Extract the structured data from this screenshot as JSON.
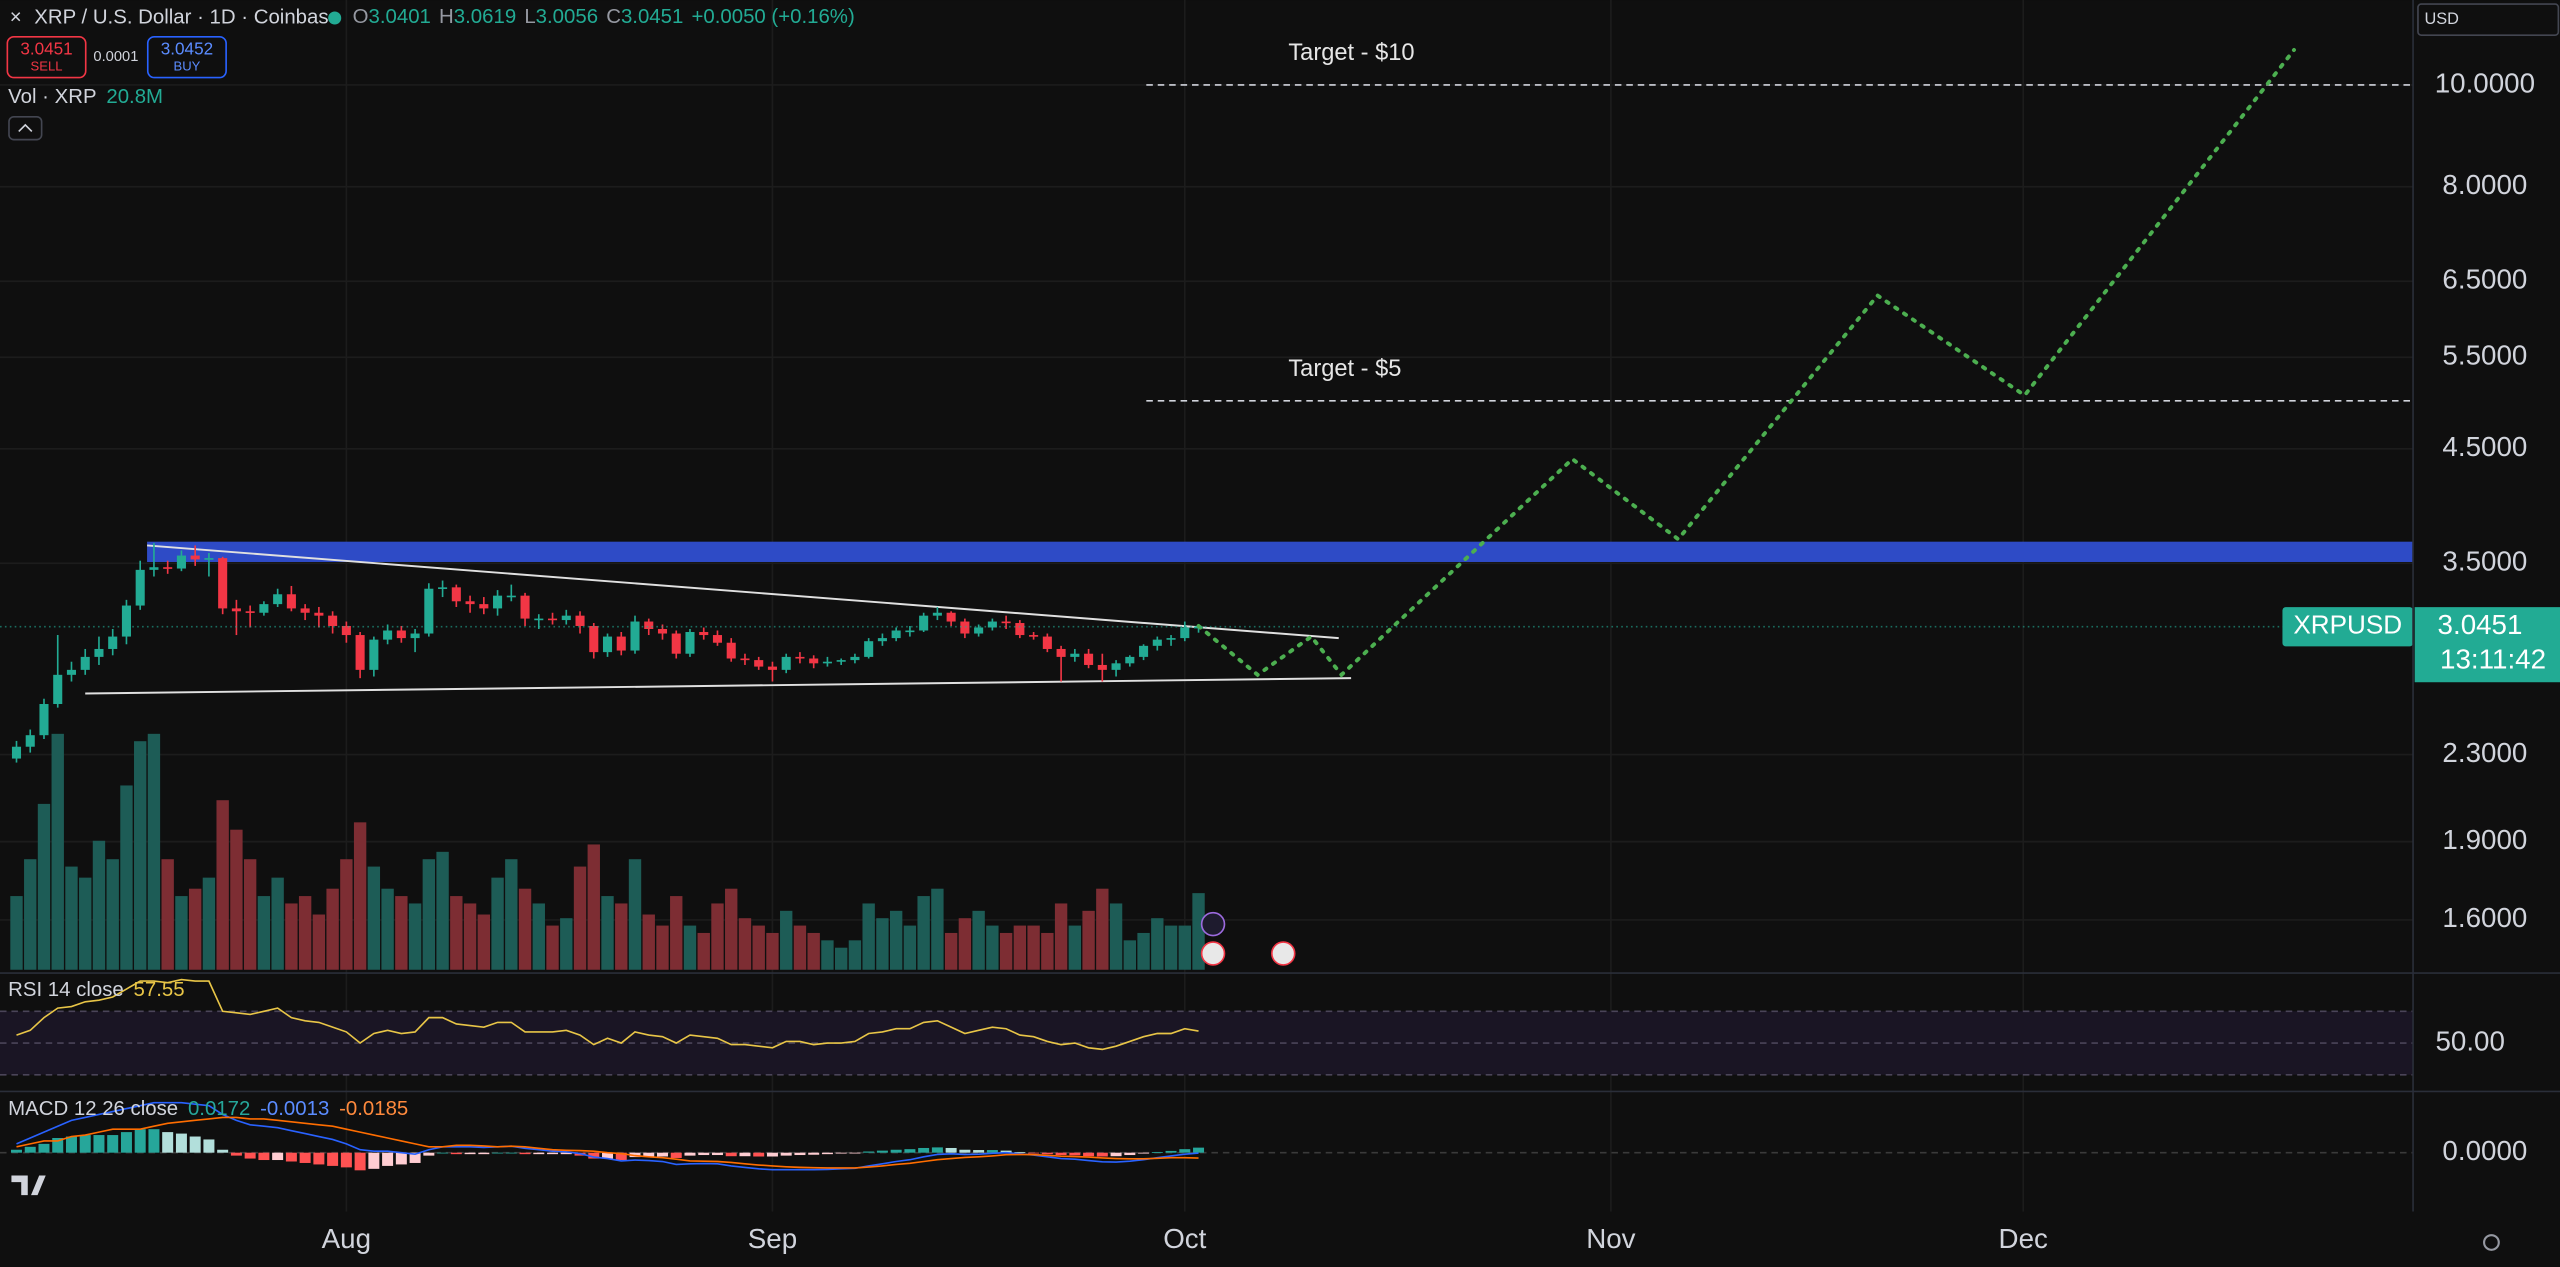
{
  "ui": {
    "sell": {
      "price": "3.0451",
      "label": "SELL"
    },
    "spread": "0.0001",
    "buy": {
      "price": "3.0452",
      "label": "BUY"
    },
    "currency": "USD"
  },
  "chart_data": {
    "type": "candlestick",
    "title": "XRP / U.S. Dollar · 1D · Coinbase",
    "ohlc": [
      {
        "label": "O",
        "value": "3.0401"
      },
      {
        "label": "H",
        "value": "3.0619"
      },
      {
        "label": "L",
        "value": "3.0056"
      },
      {
        "label": "C",
        "value": "3.0451"
      }
    ],
    "change": "+0.0050 (+0.16%)",
    "log": true,
    "grid": true,
    "up_color": "#22ab94",
    "down_color": "#f23645",
    "xlim": [
      -1.2,
      174.6
    ],
    "xticks": [
      {
        "value": 24,
        "label": "Aug"
      },
      {
        "value": 55,
        "label": "Sep"
      },
      {
        "value": 85,
        "label": "Oct"
      },
      {
        "value": 116,
        "label": "Nov"
      },
      {
        "value": 146,
        "label": "Dec"
      }
    ],
    "ylim": [
      1.434,
      12.05
    ],
    "yticks": [
      {
        "value": 1.6,
        "label": "1.6000"
      },
      {
        "value": 1.9,
        "label": "1.9000"
      },
      {
        "value": 2.3,
        "label": "2.3000"
      },
      {
        "value": 3.5,
        "label": "3.5000"
      },
      {
        "value": 4.5,
        "label": "4.5000"
      },
      {
        "value": 5.5,
        "label": "5.5000"
      },
      {
        "value": 6.5,
        "label": "6.5000"
      },
      {
        "value": 8,
        "label": "8.0000"
      },
      {
        "value": 10,
        "label": "10.0000"
      }
    ],
    "candles": [
      [
        2.28,
        2.37,
        2.26,
        2.34
      ],
      [
        2.34,
        2.43,
        2.31,
        2.4
      ],
      [
        2.4,
        2.6,
        2.38,
        2.57
      ],
      [
        2.57,
        2.99,
        2.55,
        2.74
      ],
      [
        2.74,
        2.82,
        2.7,
        2.77
      ],
      [
        2.77,
        2.9,
        2.74,
        2.85
      ],
      [
        2.85,
        2.98,
        2.8,
        2.9
      ],
      [
        2.9,
        3.03,
        2.86,
        2.98
      ],
      [
        2.98,
        3.23,
        2.93,
        3.19
      ],
      [
        3.19,
        3.52,
        3.16,
        3.45
      ],
      [
        3.45,
        3.66,
        3.4,
        3.47
      ],
      [
        3.47,
        3.52,
        3.42,
        3.46
      ],
      [
        3.46,
        3.6,
        3.44,
        3.56
      ],
      [
        3.56,
        3.64,
        3.48,
        3.53
      ],
      [
        3.53,
        3.58,
        3.4,
        3.54
      ],
      [
        3.54,
        3.55,
        3.13,
        3.17
      ],
      [
        3.17,
        3.23,
        2.99,
        3.15
      ],
      [
        3.15,
        3.19,
        3.04,
        3.14
      ],
      [
        3.14,
        3.22,
        3.12,
        3.2
      ],
      [
        3.2,
        3.31,
        3.18,
        3.27
      ],
      [
        3.27,
        3.33,
        3.15,
        3.17
      ],
      [
        3.17,
        3.2,
        3.09,
        3.14
      ],
      [
        3.14,
        3.18,
        3.04,
        3.12
      ],
      [
        3.12,
        3.15,
        3.0,
        3.05
      ],
      [
        3.05,
        3.08,
        2.94,
        2.99
      ],
      [
        2.99,
        3.01,
        2.72,
        2.77
      ],
      [
        2.77,
        2.98,
        2.73,
        2.96
      ],
      [
        2.96,
        3.06,
        2.93,
        3.02
      ],
      [
        3.02,
        3.05,
        2.94,
        2.97
      ],
      [
        2.97,
        3.03,
        2.88,
        3.0
      ],
      [
        3.0,
        3.35,
        2.98,
        3.31
      ],
      [
        3.31,
        3.37,
        3.25,
        3.32
      ],
      [
        3.32,
        3.34,
        3.18,
        3.22
      ],
      [
        3.22,
        3.26,
        3.14,
        3.2
      ],
      [
        3.2,
        3.25,
        3.13,
        3.17
      ],
      [
        3.17,
        3.3,
        3.12,
        3.26
      ],
      [
        3.26,
        3.34,
        3.22,
        3.26
      ],
      [
        3.26,
        3.28,
        3.05,
        3.1
      ],
      [
        3.1,
        3.13,
        3.03,
        3.1
      ],
      [
        3.1,
        3.14,
        3.06,
        3.09
      ],
      [
        3.09,
        3.16,
        3.06,
        3.12
      ],
      [
        3.12,
        3.15,
        3.0,
        3.05
      ],
      [
        3.05,
        3.07,
        2.84,
        2.88
      ],
      [
        2.88,
        3.0,
        2.85,
        2.98
      ],
      [
        2.98,
        3.01,
        2.86,
        2.89
      ],
      [
        2.89,
        3.12,
        2.87,
        3.08
      ],
      [
        3.08,
        3.1,
        2.99,
        3.03
      ],
      [
        3.03,
        3.06,
        2.96,
        3.0
      ],
      [
        3.0,
        3.02,
        2.84,
        2.87
      ],
      [
        2.87,
        3.03,
        2.85,
        3.01
      ],
      [
        3.01,
        3.04,
        2.96,
        2.99
      ],
      [
        2.99,
        3.02,
        2.92,
        2.94
      ],
      [
        2.94,
        2.97,
        2.82,
        2.84
      ],
      [
        2.84,
        2.87,
        2.8,
        2.83
      ],
      [
        2.83,
        2.85,
        2.77,
        2.79
      ],
      [
        2.79,
        2.82,
        2.7,
        2.77
      ],
      [
        2.77,
        2.87,
        2.75,
        2.85
      ],
      [
        2.85,
        2.88,
        2.81,
        2.84
      ],
      [
        2.84,
        2.86,
        2.78,
        2.81
      ],
      [
        2.81,
        2.85,
        2.79,
        2.82
      ],
      [
        2.82,
        2.84,
        2.8,
        2.83
      ],
      [
        2.83,
        2.87,
        2.81,
        2.85
      ],
      [
        2.85,
        2.97,
        2.84,
        2.95
      ],
      [
        2.95,
        3.0,
        2.92,
        2.97
      ],
      [
        2.97,
        3.04,
        2.95,
        3.02
      ],
      [
        3.02,
        3.05,
        2.98,
        3.02
      ],
      [
        3.02,
        3.14,
        3.01,
        3.12
      ],
      [
        3.12,
        3.18,
        3.09,
        3.14
      ],
      [
        3.14,
        3.15,
        3.05,
        3.08
      ],
      [
        3.08,
        3.1,
        2.97,
        3.0
      ],
      [
        3.0,
        3.06,
        2.98,
        3.04
      ],
      [
        3.04,
        3.1,
        3.02,
        3.08
      ],
      [
        3.08,
        3.12,
        3.03,
        3.07
      ],
      [
        3.07,
        3.09,
        2.97,
        2.99
      ],
      [
        2.99,
        3.01,
        2.96,
        2.98
      ],
      [
        2.98,
        3.0,
        2.88,
        2.9
      ],
      [
        2.9,
        2.92,
        2.7,
        2.85
      ],
      [
        2.85,
        2.9,
        2.82,
        2.87
      ],
      [
        2.87,
        2.9,
        2.78,
        2.8
      ],
      [
        2.8,
        2.87,
        2.7,
        2.77
      ],
      [
        2.77,
        2.83,
        2.73,
        2.81
      ],
      [
        2.81,
        2.86,
        2.79,
        2.85
      ],
      [
        2.85,
        2.93,
        2.83,
        2.92
      ],
      [
        2.92,
        2.98,
        2.89,
        2.96
      ],
      [
        2.96,
        2.99,
        2.92,
        2.97
      ],
      [
        2.97,
        3.08,
        2.95,
        3.04
      ],
      [
        3.0401,
        3.0619,
        3.0056,
        3.0451
      ]
    ],
    "last_price": {
      "value": 3.0451,
      "label": "3.0451"
    },
    "symbol": "XRPUSD",
    "countdown": "13:11:42",
    "volume": {
      "label": "Vol · XRP",
      "last": "20.8M",
      "ylim": [
        0,
        263
      ],
      "up_color": "#1d5c56",
      "down_color": "#7d2d33",
      "values": [
        20,
        30,
        45,
        64,
        28,
        25,
        35,
        30,
        50,
        62,
        64,
        30,
        20,
        22,
        25,
        46,
        38,
        30,
        20,
        25,
        18,
        20,
        15,
        22,
        30,
        40,
        28,
        22,
        20,
        18,
        30,
        32,
        20,
        18,
        15,
        25,
        30,
        22,
        18,
        12,
        14,
        28,
        34,
        20,
        18,
        30,
        15,
        12,
        20,
        12,
        10,
        18,
        22,
        14,
        12,
        10,
        16,
        12,
        10,
        8,
        6,
        8,
        18,
        14,
        16,
        12,
        20,
        22,
        10,
        14,
        16,
        12,
        10,
        12,
        12,
        10,
        18,
        12,
        16,
        22,
        18,
        8,
        10,
        14,
        12,
        12,
        20.8
      ]
    },
    "rsi": {
      "label": "RSI 14 close",
      "last": "57.55",
      "color": "#e8c547",
      "ylim": [
        20,
        92
      ],
      "bands": [
        30,
        70
      ],
      "yticks": [
        {
          "value": 50,
          "label": "50.00"
        }
      ],
      "values": [
        55,
        58,
        66,
        72,
        73,
        76,
        77,
        79,
        84,
        89,
        89,
        88,
        90,
        89,
        89,
        70,
        69,
        68,
        70,
        72,
        66,
        64,
        63,
        60,
        57,
        50,
        56,
        58,
        56,
        57,
        66,
        66,
        62,
        61,
        60,
        63,
        63,
        57,
        57,
        57,
        58,
        55,
        49,
        53,
        50,
        57,
        55,
        54,
        50,
        55,
        54,
        53,
        49,
        49,
        48,
        47,
        51,
        51,
        49,
        50,
        50,
        51,
        56,
        57,
        59,
        59,
        63,
        64,
        60,
        56,
        58,
        60,
        59,
        55,
        54,
        51,
        49,
        50,
        47,
        46,
        48,
        51,
        54,
        56,
        56,
        59,
        57.55
      ]
    },
    "macd": {
      "label": "MACD 12 26 close",
      "histogram_label": "0.0172",
      "macd_label": "-0.0013",
      "signal_label": "-0.0185",
      "ylim": [
        -0.2,
        0.2
      ],
      "yticks": [
        {
          "value": 0,
          "label": "0.0000"
        }
      ],
      "macd_color": "#2962ff",
      "signal_color": "#ff6d00",
      "histogram": [
        0.01,
        0.02,
        0.03,
        0.05,
        0.055,
        0.06,
        0.06,
        0.06,
        0.07,
        0.08,
        0.08,
        0.07,
        0.065,
        0.055,
        0.045,
        0.01,
        -0.01,
        -0.02,
        -0.025,
        -0.025,
        -0.03,
        -0.035,
        -0.04,
        -0.045,
        -0.05,
        -0.06,
        -0.055,
        -0.045,
        -0.04,
        -0.035,
        -0.01,
        0,
        -0.005,
        -0.005,
        -0.005,
        0,
        0,
        -0.005,
        -0.005,
        -0.005,
        -0.005,
        -0.01,
        -0.02,
        -0.02,
        -0.025,
        -0.015,
        -0.013,
        -0.013,
        -0.018,
        -0.01,
        -0.008,
        -0.008,
        -0.012,
        -0.012,
        -0.013,
        -0.013,
        -0.01,
        -0.008,
        -0.007,
        -0.005,
        -0.003,
        -0.001,
        0.004,
        0.007,
        0.01,
        0.012,
        0.016,
        0.018,
        0.016,
        0.01,
        0.009,
        0.009,
        0.007,
        0.002,
        -0.001,
        -0.005,
        -0.008,
        -0.009,
        -0.012,
        -0.013,
        -0.012,
        -0.008,
        -0.003,
        0.002,
        0.006,
        0.012,
        0.0172
      ],
      "macd": [
        0.03,
        0.05,
        0.07,
        0.09,
        0.11,
        0.12,
        0.13,
        0.14,
        0.15,
        0.16,
        0.17,
        0.17,
        0.17,
        0.165,
        0.16,
        0.13,
        0.11,
        0.095,
        0.09,
        0.085,
        0.075,
        0.065,
        0.055,
        0.045,
        0.03,
        0.01,
        0.005,
        0.005,
        0.0,
        -0.005,
        0.01,
        0.02,
        0.02,
        0.02,
        0.018,
        0.02,
        0.022,
        0.015,
        0.01,
        0.005,
        0.003,
        -0.003,
        -0.015,
        -0.02,
        -0.028,
        -0.025,
        -0.027,
        -0.03,
        -0.04,
        -0.038,
        -0.037,
        -0.038,
        -0.045,
        -0.05,
        -0.055,
        -0.058,
        -0.058,
        -0.058,
        -0.058,
        -0.057,
        -0.055,
        -0.053,
        -0.045,
        -0.038,
        -0.03,
        -0.024,
        -0.014,
        -0.006,
        -0.004,
        -0.006,
        -0.005,
        -0.002,
        0.0,
        -0.004,
        -0.008,
        -0.014,
        -0.02,
        -0.022,
        -0.027,
        -0.031,
        -0.032,
        -0.029,
        -0.024,
        -0.017,
        -0.011,
        -0.005,
        -0.0013
      ],
      "signal": [
        0.02,
        0.03,
        0.04,
        0.04,
        0.055,
        0.06,
        0.07,
        0.08,
        0.08,
        0.08,
        0.09,
        0.1,
        0.105,
        0.11,
        0.115,
        0.12,
        0.12,
        0.115,
        0.115,
        0.11,
        0.105,
        0.1,
        0.095,
        0.09,
        0.08,
        0.07,
        0.06,
        0.05,
        0.04,
        0.03,
        0.02,
        0.02,
        0.025,
        0.025,
        0.023,
        0.02,
        0.022,
        0.02,
        0.015,
        0.01,
        0.008,
        0.007,
        0.005,
        0.0,
        -0.003,
        -0.01,
        -0.014,
        -0.017,
        -0.022,
        -0.028,
        -0.029,
        -0.03,
        -0.033,
        -0.038,
        -0.042,
        -0.045,
        -0.048,
        -0.05,
        -0.051,
        -0.052,
        -0.052,
        -0.052,
        -0.049,
        -0.045,
        -0.04,
        -0.036,
        -0.03,
        -0.024,
        -0.02,
        -0.016,
        -0.014,
        -0.011,
        -0.007,
        -0.006,
        -0.007,
        -0.009,
        -0.012,
        -0.013,
        -0.015,
        -0.018,
        -0.02,
        -0.021,
        -0.021,
        -0.019,
        -0.017,
        -0.017,
        -0.0185
      ]
    },
    "annotations": {
      "zone": {
        "x_from": 9.5,
        "low": 3.51,
        "high": 3.67,
        "color": "#2e4bc6"
      },
      "triangle": [
        {
          "x": [
            9.5,
            96.2
          ],
          "y": [
            3.64,
            2.97
          ]
        },
        {
          "x": [
            5,
            97.1
          ],
          "y": [
            2.63,
            2.72
          ]
        }
      ],
      "target_x_from": 82.2,
      "targets": [
        {
          "label": "Target - $10",
          "value": 10
        },
        {
          "label": "Target - $5",
          "value": 5
        }
      ],
      "projection": {
        "color": "#4caf50",
        "x": [
          86,
          90.3,
          94.2,
          96.4,
          113.2,
          120.9,
          135.4,
          146.1,
          165.7
        ],
        "y": [
          3.05,
          2.74,
          2.98,
          2.74,
          4.4,
          3.69,
          6.3,
          5.06,
          10.8
        ]
      }
    }
  }
}
